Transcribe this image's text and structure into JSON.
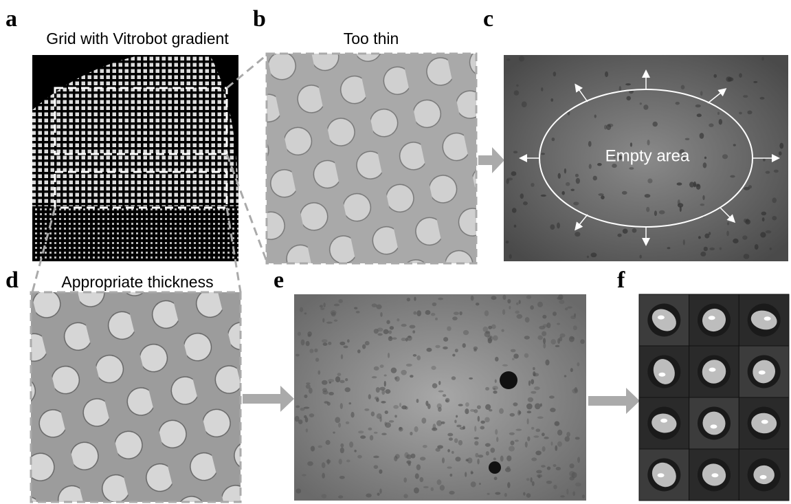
{
  "panels": [
    {
      "letter": "a",
      "title": "Grid with Vitrobot gradient"
    },
    {
      "letter": "b",
      "title": "Too thin"
    },
    {
      "letter": "c",
      "annotation": "Empty area"
    },
    {
      "letter": "d",
      "title": "Appropriate thickness"
    },
    {
      "letter": "e"
    },
    {
      "letter": "f"
    }
  ]
}
